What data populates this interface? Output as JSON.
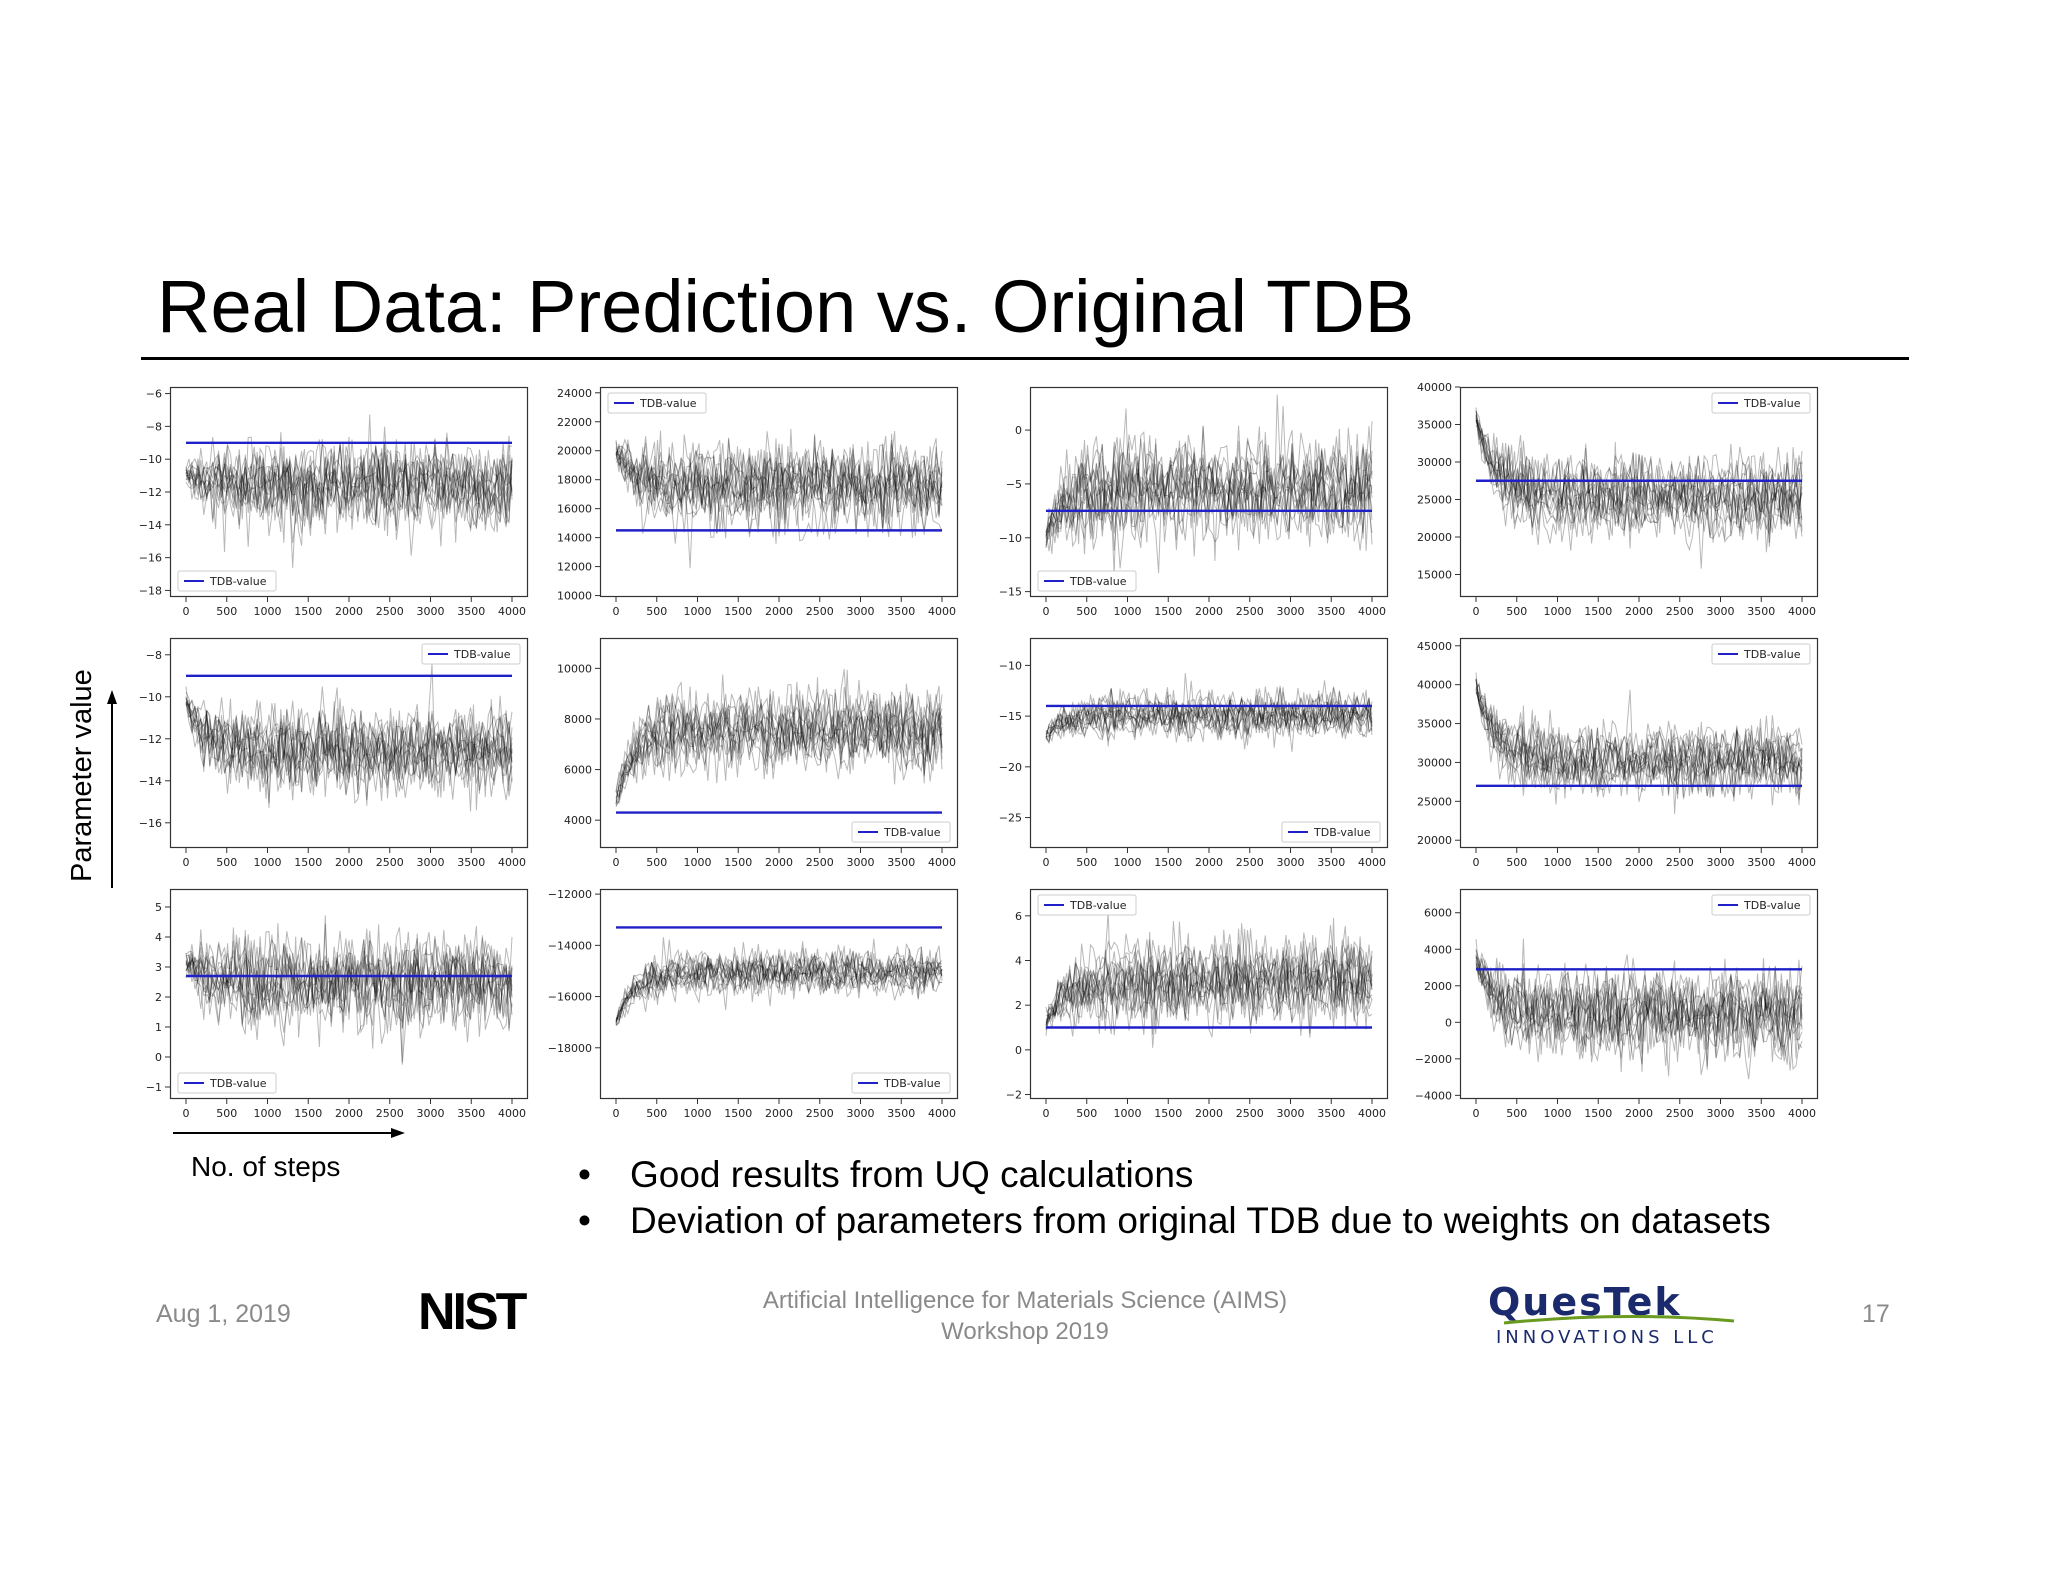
{
  "slide": {
    "title": "Real Data: Prediction vs. Original TDB",
    "y_axis_label": "Parameter value",
    "x_axis_label": "No. of steps",
    "bullets": [
      "Good results from UQ calculations",
      "Deviation of parameters from original TDB due to weights on datasets"
    ]
  },
  "footer": {
    "date": "Aug 1, 2019",
    "event_line1": "Artificial Intelligence for Materials Science (AIMS)",
    "event_line2": "Workshop 2019",
    "page_number": "17",
    "nist_logo_text": "NIST",
    "questek_logo_text": "QuesTek",
    "questek_logo_sub": "INNOVATIONS LLC",
    "colors": {
      "questek_blue": "#1a2a6c",
      "questek_green": "#6a9a1f",
      "footer_gray": "#8a8a8a"
    }
  },
  "chart_data": [
    {
      "type": "line",
      "x": [
        0,
        4000
      ],
      "xticks": [
        0,
        500,
        1000,
        1500,
        2000,
        2500,
        3000,
        3500,
        4000
      ],
      "ylim": [
        -18.4,
        -5.6
      ],
      "yticks": [
        -6,
        -8,
        -10,
        -12,
        -14,
        -16,
        -18
      ],
      "series": [
        {
          "name": "TDB-value",
          "values": [
            -9,
            -9
          ],
          "color": "#2020c8"
        }
      ],
      "traces": {
        "start": -11,
        "mean": -11.8,
        "spread": 1.6,
        "color": "#000000"
      },
      "legend": "lower-left"
    },
    {
      "type": "line",
      "x": [
        0,
        4000
      ],
      "xticks": [
        0,
        500,
        1000,
        1500,
        2000,
        2500,
        3000,
        3500,
        4000
      ],
      "ylim": [
        9900,
        24400
      ],
      "yticks": [
        24000,
        22000,
        20000,
        18000,
        16000,
        14000,
        12000,
        10000
      ],
      "series": [
        {
          "name": "TDB-value",
          "values": [
            14500,
            14500
          ],
          "color": "#2020c8"
        }
      ],
      "traces": {
        "start": 20000,
        "mean": 17400,
        "spread": 1700,
        "color": "#000000"
      },
      "legend": "upper-left"
    },
    {
      "type": "line",
      "x": [
        0,
        4000
      ],
      "xticks": [
        0,
        500,
        1000,
        1500,
        2000,
        2500,
        3000,
        3500,
        4000
      ],
      "ylim": [
        -15.5,
        4
      ],
      "yticks": [
        0,
        -5,
        -10,
        -15
      ],
      "series": [
        {
          "name": "TDB-value",
          "values": [
            -7.5,
            -7.5
          ],
          "color": "#2020c8"
        }
      ],
      "traces": {
        "start": -10,
        "mean": -5.5,
        "spread": 2.6,
        "color": "#000000"
      },
      "legend": "lower-left"
    },
    {
      "type": "line",
      "x": [
        0,
        4000
      ],
      "xticks": [
        0,
        500,
        1000,
        1500,
        2000,
        2500,
        3000,
        3500,
        4000
      ],
      "ylim": [
        12000,
        40000
      ],
      "yticks": [
        40000,
        35000,
        30000,
        25000,
        20000,
        15000
      ],
      "series": [
        {
          "name": "TDB-value",
          "values": [
            27500,
            27500
          ],
          "color": "#2020c8"
        }
      ],
      "traces": {
        "start": 36000,
        "mean": 25000,
        "spread": 3000,
        "color": "#000000"
      },
      "legend": "upper-right"
    },
    {
      "type": "line",
      "x": [
        0,
        4000
      ],
      "xticks": [
        0,
        500,
        1000,
        1500,
        2000,
        2500,
        3000,
        3500,
        4000
      ],
      "ylim": [
        -17.2,
        -7.2
      ],
      "yticks": [
        -8,
        -10,
        -12,
        -14,
        -16
      ],
      "series": [
        {
          "name": "TDB-value",
          "values": [
            -9,
            -9
          ],
          "color": "#2020c8"
        }
      ],
      "traces": {
        "start": -10.2,
        "mean": -12.4,
        "spread": 1.2,
        "color": "#000000"
      },
      "legend": "upper-right"
    },
    {
      "type": "line",
      "x": [
        0,
        4000
      ],
      "xticks": [
        0,
        500,
        1000,
        1500,
        2000,
        2500,
        3000,
        3500,
        4000
      ],
      "ylim": [
        2900,
        11200
      ],
      "yticks": [
        10000,
        8000,
        6000,
        4000
      ],
      "series": [
        {
          "name": "TDB-value",
          "values": [
            4300,
            4300
          ],
          "color": "#2020c8"
        }
      ],
      "traces": {
        "start": 4800,
        "mean": 7600,
        "spread": 900,
        "color": "#000000"
      },
      "legend": "lower-right"
    },
    {
      "type": "line",
      "x": [
        0,
        4000
      ],
      "xticks": [
        0,
        500,
        1000,
        1500,
        2000,
        2500,
        3000,
        3500,
        4000
      ],
      "ylim": [
        -28,
        -7.3
      ],
      "yticks": [
        -10,
        -15,
        -20,
        -25
      ],
      "series": [
        {
          "name": "TDB-value",
          "values": [
            -14,
            -14
          ],
          "color": "#2020c8"
        }
      ],
      "traces": {
        "start": -17,
        "mean": -15,
        "spread": 1.3,
        "color": "#000000"
      },
      "legend": "lower-right"
    },
    {
      "type": "line",
      "x": [
        0,
        4000
      ],
      "xticks": [
        0,
        500,
        1000,
        1500,
        2000,
        2500,
        3000,
        3500,
        4000
      ],
      "ylim": [
        19000,
        46000
      ],
      "yticks": [
        45000,
        40000,
        35000,
        30000,
        25000,
        20000
      ],
      "series": [
        {
          "name": "TDB-value",
          "values": [
            27000,
            27000
          ],
          "color": "#2020c8"
        }
      ],
      "traces": {
        "start": 40000,
        "mean": 30000,
        "spread": 2600,
        "color": "#000000"
      },
      "legend": "upper-right"
    },
    {
      "type": "line",
      "x": [
        0,
        4000
      ],
      "xticks": [
        0,
        500,
        1000,
        1500,
        2000,
        2500,
        3000,
        3500,
        4000
      ],
      "ylim": [
        -1.4,
        5.6
      ],
      "yticks": [
        5,
        4,
        3,
        2,
        1,
        0,
        -1
      ],
      "series": [
        {
          "name": "TDB-value",
          "values": [
            2.7,
            2.7
          ],
          "color": "#2020c8"
        }
      ],
      "traces": {
        "start": 3.2,
        "mean": 2.5,
        "spread": 0.9,
        "color": "#000000"
      },
      "legend": "lower-left"
    },
    {
      "type": "line",
      "x": [
        0,
        4000
      ],
      "xticks": [
        0,
        500,
        1000,
        1500,
        2000,
        2500,
        3000,
        3500,
        4000
      ],
      "ylim": [
        -20000,
        -11800
      ],
      "yticks": [
        -12000,
        -14000,
        -16000,
        -18000
      ],
      "series": [
        {
          "name": "TDB-value",
          "values": [
            -13300,
            -13300
          ],
          "color": "#2020c8"
        }
      ],
      "traces": {
        "start": -17000,
        "mean": -15000,
        "spread": 500,
        "color": "#000000"
      },
      "legend": "lower-right"
    },
    {
      "type": "line",
      "x": [
        0,
        4000
      ],
      "xticks": [
        0,
        500,
        1000,
        1500,
        2000,
        2500,
        3000,
        3500,
        4000
      ],
      "ylim": [
        -2.2,
        7.2
      ],
      "yticks": [
        6,
        4,
        2,
        0,
        -2
      ],
      "series": [
        {
          "name": "TDB-value",
          "values": [
            1,
            1
          ],
          "color": "#2020c8"
        }
      ],
      "traces": {
        "start": 1.2,
        "mean": 3.2,
        "spread": 1.1,
        "color": "#000000"
      },
      "legend": "upper-left"
    },
    {
      "type": "line",
      "x": [
        0,
        4000
      ],
      "xticks": [
        0,
        500,
        1000,
        1500,
        2000,
        2500,
        3000,
        3500,
        4000
      ],
      "ylim": [
        -4200,
        7300
      ],
      "yticks": [
        6000,
        4000,
        2000,
        0,
        -2000,
        -4000
      ],
      "series": [
        {
          "name": "TDB-value",
          "values": [
            2900,
            2900
          ],
          "color": "#2020c8"
        }
      ],
      "traces": {
        "start": 3500,
        "mean": 600,
        "spread": 1400,
        "color": "#000000"
      },
      "legend": "upper-right"
    }
  ]
}
